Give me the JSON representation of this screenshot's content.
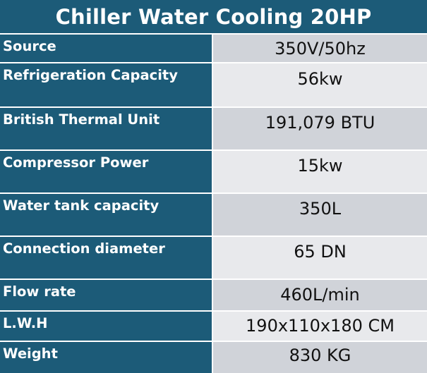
{
  "title": "Chiller Water Cooling 20HP",
  "rows": [
    {
      "label": "Source",
      "value": "350V/50hz"
    },
    {
      "label": "Refrigeration Capacity",
      "value": "56kw"
    },
    {
      "label": "British Thermal Unit",
      "value": "191,079 BTU"
    },
    {
      "label": "Compressor Power",
      "value": "15kw"
    },
    {
      "label": "Water tank capacity",
      "value": "350L"
    },
    {
      "label": "Connection diameter",
      "value": "65 DN"
    },
    {
      "label": "Flow rate",
      "value": "460L/min"
    },
    {
      "label": "L.W.H",
      "value": "190x110x180 CM"
    },
    {
      "label": "Weight",
      "value": "830 KG"
    }
  ],
  "colors": {
    "header_bg": "#1c5b78",
    "value_bg_dark": "#d0d3d9",
    "value_bg_light": "#e8e9ec"
  }
}
